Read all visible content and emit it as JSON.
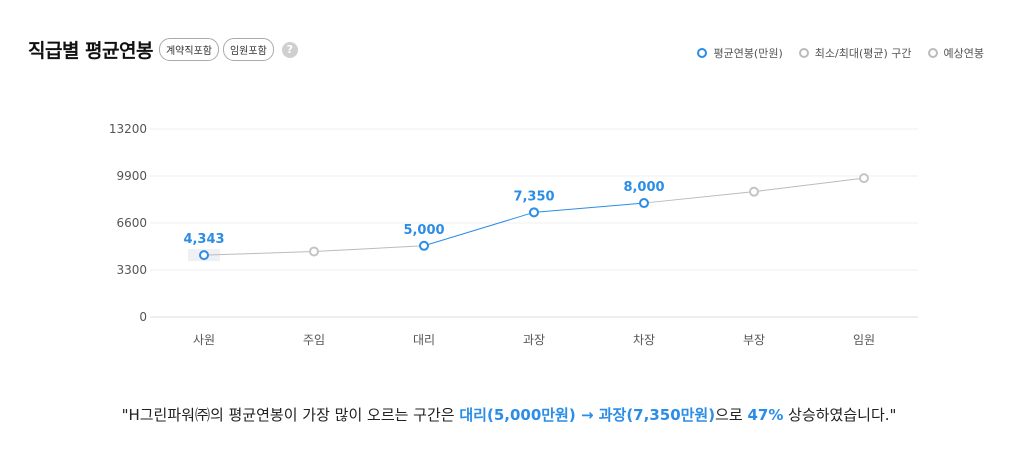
{
  "header": {
    "title": "직급별 평균연봉",
    "chips": [
      "계약직포함",
      "임원포함"
    ],
    "help": "?"
  },
  "legend": [
    {
      "label": "평균연봉(만원)",
      "color": "#2b8de6"
    },
    {
      "label": "최소/최대(평균) 구간",
      "color": "#bbbbbb"
    },
    {
      "label": "예상연봉",
      "color": "#bbbbbb"
    }
  ],
  "chart_data": {
    "type": "line",
    "categories": [
      "사원",
      "주임",
      "대리",
      "과장",
      "차장",
      "부장",
      "임원"
    ],
    "yticks": [
      "0",
      "3300",
      "6600",
      "9900",
      "13200"
    ],
    "ylim": [
      0,
      13200
    ],
    "series": [
      {
        "name": "평균연봉(만원)",
        "values": [
          4343,
          null,
          5000,
          7350,
          8000,
          null,
          null
        ],
        "color": "#2b8de6"
      },
      {
        "name": "예상연봉",
        "values": [
          4343,
          4600,
          5000,
          7350,
          8000,
          8800,
          9750
        ],
        "color": "#bbbbbb"
      }
    ],
    "data_labels": [
      "4,343",
      "",
      "5,000",
      "7,350",
      "8,000",
      "",
      ""
    ],
    "grid": true
  },
  "summary": {
    "prefix": "\"H그린파워㈜의 평균연봉이 가장 많이 오르는 구간은 ",
    "highlight1": "대리(5,000만원) → 과장(7,350만원)",
    "mid": "으로 ",
    "highlight2": "47%",
    "suffix": " 상승하였습니다.\""
  }
}
